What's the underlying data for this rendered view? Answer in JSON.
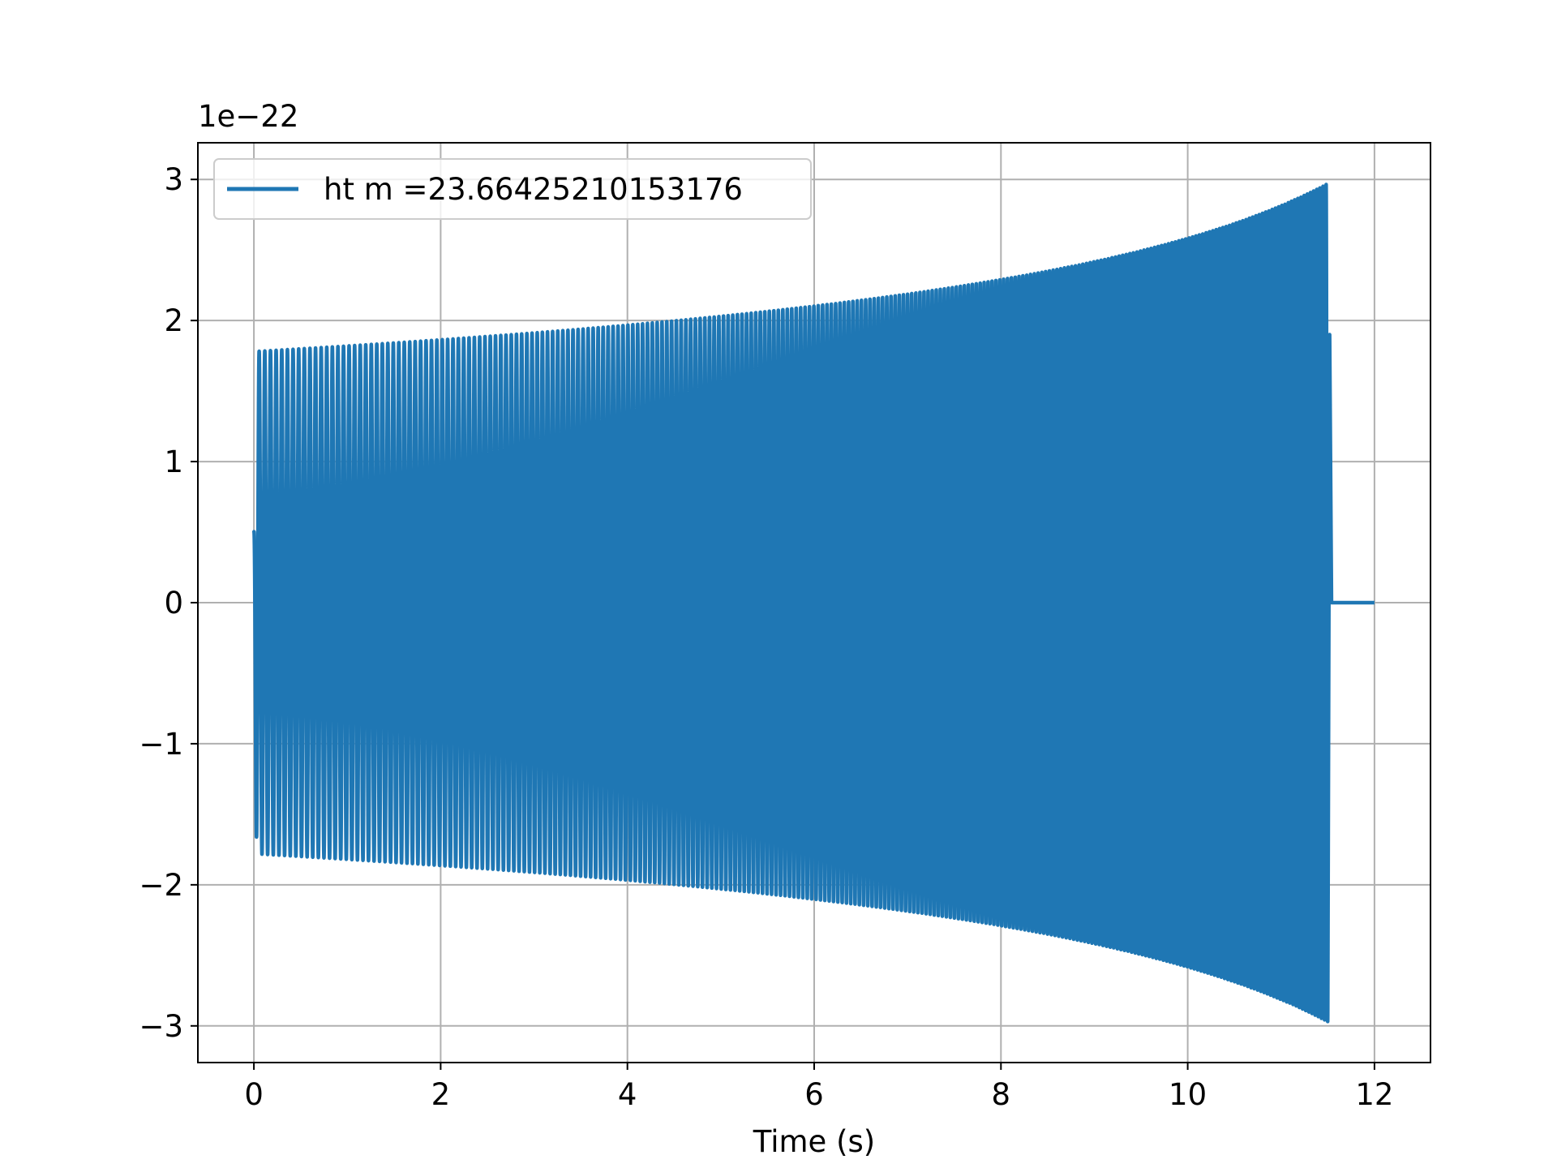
{
  "chart_data": {
    "type": "line",
    "xlabel": "Time (s)",
    "ylabel": "",
    "offset_text": "1e−22",
    "xlim": [
      -0.6,
      12.6
    ],
    "ylim": [
      -3.26,
      3.26
    ],
    "x_ticks": [
      0,
      2,
      4,
      6,
      8,
      10,
      12
    ],
    "x_tick_labels": [
      "0",
      "2",
      "4",
      "6",
      "8",
      "10",
      "12"
    ],
    "y_ticks": [
      -3,
      -2,
      -1,
      0,
      1,
      2,
      3
    ],
    "y_tick_labels": [
      "−3",
      "−2",
      "−1",
      "0",
      "1",
      "2",
      "3"
    ],
    "grid": true,
    "legend": {
      "position": "top-left"
    },
    "series": [
      {
        "name": "ht m =23.66425210153176",
        "color": "#1f77b4",
        "t_start": 0,
        "t_merger": 11.5,
        "t_end": 12,
        "initial_amplitude": 1.78,
        "final_amplitude": 2.97,
        "initial_frequency_hz": 16.5,
        "final_frequency_hz": 30,
        "post_merger_value": 0
      }
    ]
  }
}
